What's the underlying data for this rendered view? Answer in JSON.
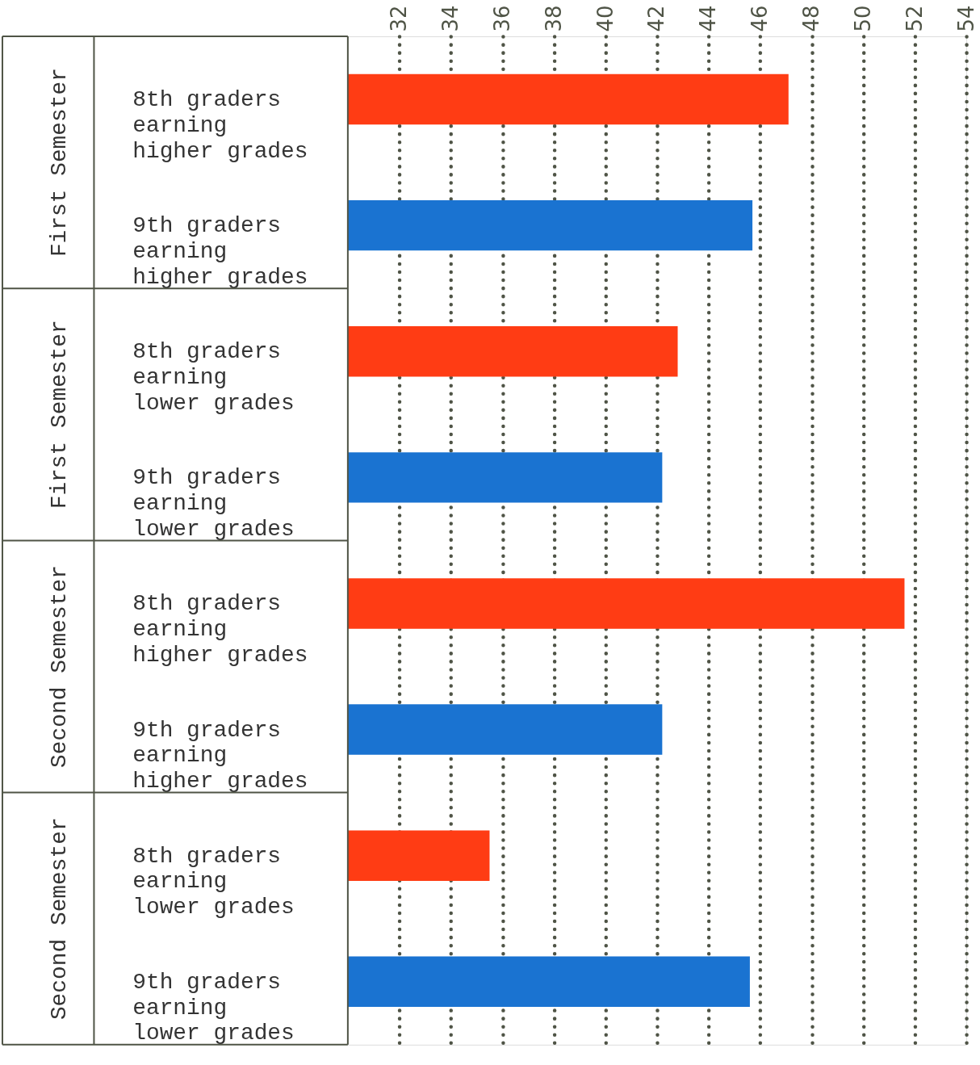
{
  "chart_data": {
    "type": "bar",
    "orientation": "horizontal",
    "categories": [
      "8th graders earning higher grades",
      "9th graders earning higher grades",
      "8th graders earning lower grades",
      "9th graders earning lower grades",
      "8th graders earning higher grades",
      "9th graders earning higher grades",
      "8th graders earning lower grades",
      "9th graders earning lower grades"
    ],
    "values": [
      47.1,
      45.7,
      42.8,
      42.2,
      51.6,
      42.2,
      35.5,
      45.6
    ],
    "colors": [
      "#ff3c14",
      "#1a73d1",
      "#ff3c14",
      "#1a73d1",
      "#ff3c14",
      "#1a73d1",
      "#ff3c14",
      "#1a73d1"
    ],
    "xlim": [
      30,
      54
    ],
    "xticks": [
      32,
      34,
      36,
      38,
      40,
      42,
      44,
      46,
      48,
      50,
      52,
      54
    ],
    "grid": "x",
    "annotations": [
      "First Semester",
      "First Semester",
      "Second Semester",
      "Second Semester"
    ]
  }
}
